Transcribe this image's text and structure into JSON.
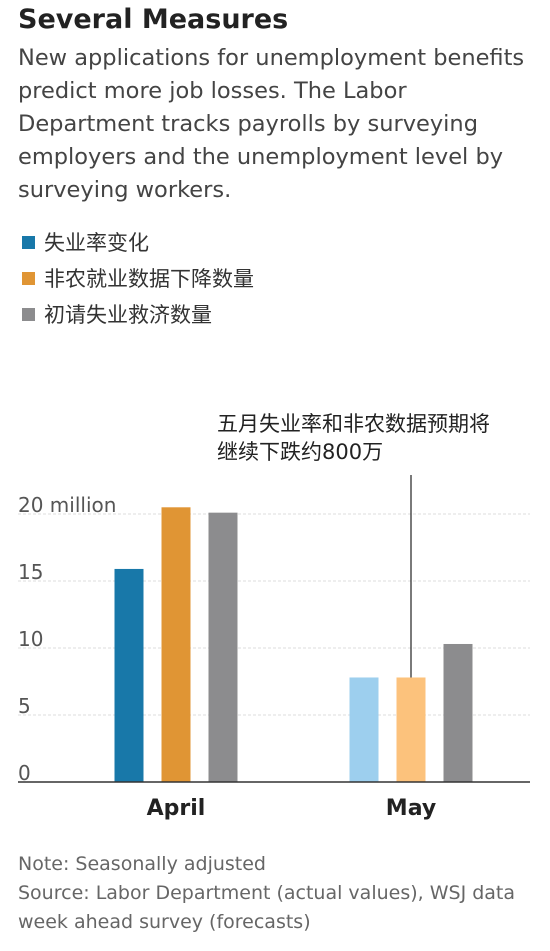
{
  "header": {
    "title": "Several Measures",
    "subtitle": "New applications for unemployment benefits predict more job losses. The Labor Department tracks payrolls by surveying employers and the unemployment level by surveying workers."
  },
  "legend": [
    {
      "label": "失业率变化",
      "color": "#1878a9"
    },
    {
      "label": "非农就业数据下降数量",
      "color": "#e09534"
    },
    {
      "label": "初请失业救济数量",
      "color": "#8c8c8e"
    }
  ],
  "annotation": {
    "line1": "五月失业率和非农数据预期将",
    "line2": "继续下跌约800万"
  },
  "chart_data": {
    "type": "bar",
    "categories": [
      "April",
      "May"
    ],
    "series": [
      {
        "name": "失业率变化",
        "values": [
          15.9,
          7.8
        ],
        "colors": [
          "#1878a9",
          "#9dcfee"
        ]
      },
      {
        "name": "非农就业数据下降数量",
        "values": [
          20.5,
          7.8
        ],
        "colors": [
          "#e09534",
          "#fcc27c"
        ]
      },
      {
        "name": "初请失业救济数量",
        "values": [
          20.1,
          10.3
        ],
        "colors": [
          "#8c8c8e",
          "#8c8c8e"
        ]
      }
    ],
    "ylim": [
      0,
      20
    ],
    "yticks": [
      0,
      5,
      10,
      15,
      20
    ],
    "ytick_labels": [
      "0",
      "5",
      "10",
      "15",
      "20 million"
    ],
    "grid": true,
    "forecast_category": "May"
  },
  "footer": {
    "note": "Note: Seasonally adjusted",
    "source": "Source: Labor Department (actual values), WSJ data week ahead survey (forecasts)"
  }
}
